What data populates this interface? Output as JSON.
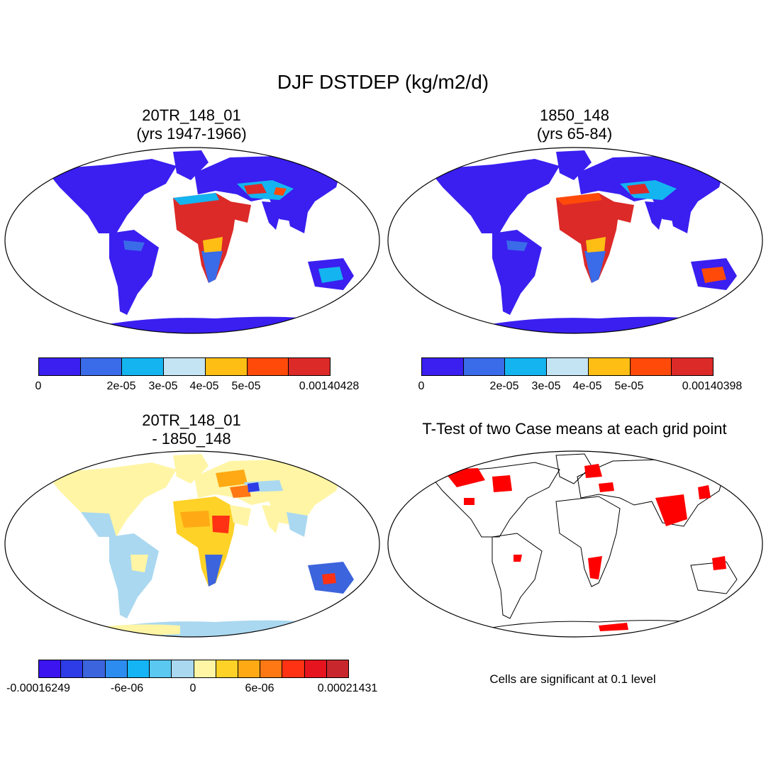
{
  "title": "DJF DSTDEP (kg/m2/d)",
  "panels": [
    {
      "id": "case1",
      "title_line1": "20TR_148_01",
      "title_line2": "(yrs 1947-1966)",
      "colorbar": {
        "colors": [
          "#3a1ff0",
          "#3a6be8",
          "#14b4f0",
          "#c4e4f4",
          "#ffbe14",
          "#ff4a0a",
          "#dc2a28"
        ],
        "labels": [
          "0",
          "2e-05",
          "3e-05",
          "4e-05",
          "5e-05",
          "0.00140428"
        ]
      }
    },
    {
      "id": "case2",
      "title_line1": "1850_148",
      "title_line2": "(yrs 65-84)",
      "colorbar": {
        "colors": [
          "#3a1ff0",
          "#3a6be8",
          "#14b4f0",
          "#c4e4f4",
          "#ffbe14",
          "#ff4a0a",
          "#dc2a28"
        ],
        "labels": [
          "0",
          "2e-05",
          "3e-05",
          "4e-05",
          "5e-05",
          "0.00140398"
        ]
      }
    },
    {
      "id": "diff",
      "title_line1": "20TR_148_01",
      "title_line2": "- 1850_148",
      "colorbar": {
        "colors": [
          "#3c14f0",
          "#2d3ce6",
          "#3c64dc",
          "#2d8cf0",
          "#14b4f5",
          "#5ac8f0",
          "#aad8f0",
          "#fff5a5",
          "#ffd228",
          "#ffaa14",
          "#ff7814",
          "#ff3214",
          "#e6141e",
          "#c8282d"
        ],
        "labels": [
          "-0.00016249",
          "-6e-06",
          "0",
          "6e-06",
          "0.00021431"
        ]
      }
    },
    {
      "id": "ttest",
      "title_line1": "T-Test of two Case means at each grid point",
      "note": "Cells are significant at 0.1 level",
      "significant_color": "#ff0000"
    }
  ]
}
